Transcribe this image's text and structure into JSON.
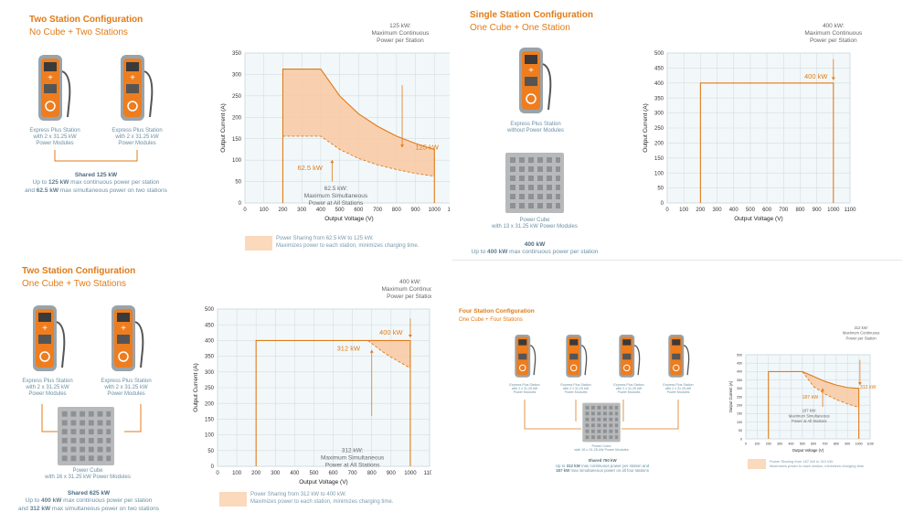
{
  "colors": {
    "accent": "#e07b18",
    "fill": "#f9c9a1",
    "grid": "#d3dde4",
    "text": "#4a4a4a",
    "blue": "#6b8fa3"
  },
  "panels": [
    {
      "title": "Two Station Configuration",
      "subtitle": "No Cube + Two Stations",
      "station_label": [
        "Express Plus Station",
        "with 2 x 31.25 kW",
        "Power Modules"
      ],
      "summary": {
        "head": "Shared 125 kW",
        "line1_pre": "Up to ",
        "line1_hl": "125 kW",
        "line1_post": " max continuous power per station",
        "line2_pre": "and ",
        "line2_hl": "62.5 kW",
        "line2_post": " max simultaneous power on two stations"
      },
      "legend": [
        "Power Sharing from 62.5 kW to 125 kW.",
        "Maximizes power to each station, minimizes charging time."
      ]
    },
    {
      "title": "Single Station Configuration",
      "subtitle": "One Cube + One Station",
      "station_label": [
        "Express Plus Station",
        "without Power Modules"
      ],
      "cube_label": [
        "Power Cube",
        "with 13 x 31.25 kW Power Modules"
      ],
      "summary": {
        "head": "400 kW",
        "line1_pre": "Up to ",
        "line1_hl": "400 kW",
        "line1_post": " max continuous power per station"
      }
    },
    {
      "title": "Two Station Configuration",
      "subtitle": "One Cube + Two Stations",
      "station_label": [
        "Express Plus Station",
        "with 2 x 31.25 kW",
        "Power Modules"
      ],
      "cube_label": [
        "Power Cube",
        "with 16 x 31.25 kW Power Modules"
      ],
      "summary": {
        "head": "Shared 625 kW",
        "line1_pre": "Up to ",
        "line1_hl": "400 kW",
        "line1_post": " max continuous power per station",
        "line2_pre": "and ",
        "line2_hl": "312 kW",
        "line2_post": " max simultaneous power on two stations"
      },
      "legend": [
        "Power Sharing from 312 kW to 400 kW.",
        "Maximizes power to each station, minimizes charging time."
      ]
    },
    {
      "title": "Four Station Configuration",
      "subtitle": "One Cube + Four Stations",
      "station_label": [
        "Express Plus Station",
        "with 2 x 31.25 kW",
        "Power Modules"
      ],
      "cube_label": [
        "Power Cube",
        "with 16 x 31.25 kW Power Modules"
      ],
      "summary": {
        "head": "Shared 750 kW",
        "line1_pre": "Up to ",
        "line1_hl": "312 kW",
        "line1_post": " max continuous power per station and",
        "line2_pre": "",
        "line2_hl": "187 kW",
        "line2_post": " max simultaneous power on all four stations"
      },
      "legend": [
        "Power Sharing from 187 kW to 312 kW.",
        "Maximizes power to each station, minimizes charging time."
      ]
    }
  ],
  "chart_data": [
    {
      "type": "area",
      "xlabel": "Output Voltage (V)",
      "ylabel": "Output Current (A)",
      "xlim": [
        0,
        1100
      ],
      "ylim": [
        0,
        350
      ],
      "xticks": [
        0,
        100,
        200,
        300,
        400,
        500,
        600,
        700,
        800,
        900,
        1000,
        1100
      ],
      "yticks": [
        0,
        50,
        100,
        150,
        200,
        250,
        300,
        350
      ],
      "series": [
        {
          "name": "max",
          "x": [
            200,
            400,
            500,
            600,
            700,
            800,
            900,
            1000
          ],
          "y": [
            312.5,
            312.5,
            250,
            208,
            179,
            156,
            139,
            125
          ]
        },
        {
          "name": "simultaneous",
          "x": [
            200,
            400,
            500,
            600,
            700,
            800,
            900,
            1000
          ],
          "y": [
            156,
            156,
            125,
            104,
            89,
            78,
            69,
            62.5
          ]
        }
      ],
      "annotations": [
        {
          "text": "125 kW",
          "pos": "right-low"
        },
        {
          "text": "62.5 kW",
          "pos": "mid"
        }
      ],
      "callout_top": [
        "125 kW:",
        "Maximum Continuous",
        "Power per Station"
      ],
      "callout_bottom": [
        "62.5 kW:",
        "Maximum Simultaneous",
        "Power at All Stations"
      ]
    },
    {
      "type": "line",
      "xlabel": "Output Voltage (V)",
      "ylabel": "Output Current (A)",
      "xlim": [
        0,
        1100
      ],
      "ylim": [
        0,
        500
      ],
      "xticks": [
        0,
        100,
        200,
        300,
        400,
        500,
        600,
        700,
        800,
        900,
        1000,
        1100
      ],
      "yticks": [
        0,
        50,
        100,
        150,
        200,
        250,
        300,
        350,
        400,
        450,
        500
      ],
      "series": [
        {
          "name": "max",
          "x": [
            200,
            200,
            1000,
            1000
          ],
          "y": [
            0,
            400,
            400,
            0
          ]
        }
      ],
      "annotations": [
        {
          "text": "400 kW",
          "pos": "top-right"
        }
      ],
      "callout_top": [
        "400 kW:",
        "Maximum Continuous",
        "Power per Station"
      ]
    },
    {
      "type": "area",
      "xlabel": "Output Voltage (V)",
      "ylabel": "Output Current (A)",
      "xlim": [
        0,
        1100
      ],
      "ylim": [
        0,
        500
      ],
      "xticks": [
        0,
        100,
        200,
        300,
        400,
        500,
        600,
        700,
        800,
        900,
        1000,
        1100
      ],
      "yticks": [
        0,
        50,
        100,
        150,
        200,
        250,
        300,
        350,
        400,
        450,
        500
      ],
      "series": [
        {
          "name": "max",
          "x": [
            200,
            200,
            1000,
            1000
          ],
          "y": [
            0,
            400,
            400,
            0
          ]
        },
        {
          "name": "simultaneous",
          "x": [
            780,
            850,
            900,
            1000
          ],
          "y": [
            400,
            367,
            347,
            312
          ]
        }
      ],
      "annotations": [
        {
          "text": "400 kW",
          "pos": "top-right"
        },
        {
          "text": "312 kW",
          "pos": "mid"
        }
      ],
      "callout_top": [
        "400 kW:",
        "Maximum Continuous",
        "Power per Station"
      ],
      "callout_bottom": [
        "312 kW:",
        "Maximum Simultaneous",
        "Power at All Stations"
      ]
    },
    {
      "type": "area",
      "xlabel": "Output Voltage (V)",
      "ylabel": "Output Current (A)",
      "xlim": [
        0,
        1100
      ],
      "ylim": [
        0,
        500
      ],
      "xticks": [
        0,
        100,
        200,
        300,
        400,
        500,
        600,
        700,
        800,
        900,
        1000,
        1100
      ],
      "yticks": [
        0,
        50,
        100,
        150,
        200,
        250,
        300,
        350,
        400,
        450,
        500
      ],
      "series": [
        {
          "name": "max",
          "x": [
            200,
            500,
            600,
            700,
            800,
            900,
            1000
          ],
          "y": [
            400,
            400,
            371,
            342,
            320,
            305,
            300
          ]
        },
        {
          "name": "simultaneous",
          "x": [
            500,
            600,
            700,
            800,
            900,
            1000
          ],
          "y": [
            400,
            311,
            267,
            234,
            208,
            187
          ]
        }
      ],
      "annotations": [
        {
          "text": "312 kW",
          "pos": "right"
        },
        {
          "text": "187 kW",
          "pos": "mid"
        }
      ],
      "callout_top": [
        "312 kW:",
        "Maximum Continuous",
        "Power per Station"
      ],
      "callout_bottom": [
        "187 kW:",
        "Maximum Simultaneous",
        "Power at All Stations"
      ]
    }
  ]
}
